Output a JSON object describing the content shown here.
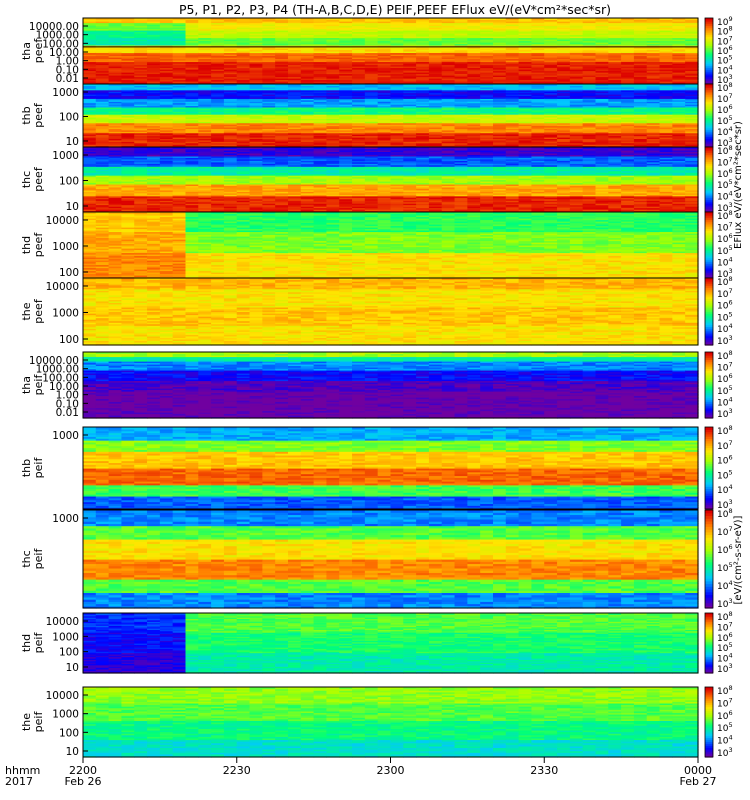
{
  "chart_data": {
    "type": "heatmap",
    "title": "P5, P1, P2, P3, P4 (TH-A,B,C,D,E) PEIF,PEEF EFlux eV/(eV*cm²*sec*sr)",
    "colorbar_label": "[eV/(cm²-s-sr-eV)]",
    "colorbar_labels": {
      "electron": "EFlux eV/(eV*cm²*sec*sr)",
      "ion": "[eV/(cm²-s-sr-eV)]"
    },
    "time_axis": {
      "row_labels": [
        "hhmm",
        "2017"
      ],
      "ticks": [
        {
          "t": 0,
          "label": "2200",
          "date": "Feb 26"
        },
        {
          "t": 30,
          "label": "2230",
          "date": ""
        },
        {
          "t": 60,
          "label": "2300",
          "date": ""
        },
        {
          "t": 90,
          "label": "2330",
          "date": ""
        },
        {
          "t": 120,
          "label": "0000",
          "date": "Feb 27"
        }
      ],
      "range_minutes": [
        0,
        120
      ]
    },
    "panels": [
      {
        "probe": "tha",
        "species": "peef",
        "yticks": [
          "10000.00",
          "1000.00",
          "100.00",
          "10.00",
          "1.00",
          "0.10",
          "0.01"
        ],
        "yrange": [
          -2,
          4.4
        ],
        "crange": [
          3,
          9
        ],
        "has_trace": true,
        "trace_value": 1.6,
        "layers": [
          {
            "from": -2,
            "to": 0.2,
            "base": 8.8
          },
          {
            "from": 0.2,
            "to": 1,
            "base": 8.3
          },
          {
            "from": 1,
            "to": 1.8,
            "base": 7.4
          },
          {
            "from": 1.8,
            "to": 2.5,
            "base": 6.2,
            "early": 5.4
          },
          {
            "from": 2.5,
            "to": 3.3,
            "base": 6.8,
            "early": 5.6
          },
          {
            "from": 3.3,
            "to": 3.9,
            "base": 7.2,
            "early": 6.2
          },
          {
            "from": 3.9,
            "to": 4.4,
            "base": 7.6
          }
        ]
      },
      {
        "probe": "thb",
        "species": "peef",
        "yticks": [
          "1000",
          "100",
          "10"
        ],
        "yrange": [
          0.6,
          3.7
        ],
        "crange": [
          3,
          8
        ],
        "layers": [
          {
            "from": 0.6,
            "to": 1.3,
            "base": 7.8
          },
          {
            "from": 1.3,
            "to": 1.8,
            "base": 7.2
          },
          {
            "from": 1.8,
            "to": 2.2,
            "base": 6.2
          },
          {
            "from": 2.2,
            "to": 2.6,
            "base": 5.2
          },
          {
            "from": 2.6,
            "to": 3.0,
            "base": 4.3
          },
          {
            "from": 3.0,
            "to": 3.4,
            "base": 3.6
          },
          {
            "from": 3.4,
            "to": 3.7,
            "base": 4.5
          }
        ]
      },
      {
        "probe": "thc",
        "species": "peef",
        "yticks": [
          "1000",
          "100",
          "10"
        ],
        "yrange": [
          0.6,
          3.4
        ],
        "crange": [
          3,
          8
        ],
        "layers": [
          {
            "from": 0.6,
            "to": 1.3,
            "base": 7.8
          },
          {
            "from": 1.3,
            "to": 1.8,
            "base": 7.0
          },
          {
            "from": 1.8,
            "to": 2.2,
            "base": 6.0
          },
          {
            "from": 2.2,
            "to": 2.6,
            "base": 5.0
          },
          {
            "from": 2.6,
            "to": 3.0,
            "base": 4.0
          },
          {
            "from": 3.0,
            "to": 3.4,
            "base": 3.3
          }
        ]
      },
      {
        "probe": "thd",
        "species": "peef",
        "yticks": [
          "10000",
          "1000",
          "100"
        ],
        "yrange": [
          1.3,
          4.4
        ],
        "crange": [
          3,
          8
        ],
        "layers": [
          {
            "from": 1.3,
            "to": 2.5,
            "base": 6.6,
            "early": 7.2
          },
          {
            "from": 2.5,
            "to": 3.5,
            "base": 5.8,
            "early": 7.0
          },
          {
            "from": 3.5,
            "to": 4.4,
            "base": 5.4,
            "early": 6.8
          }
        ]
      },
      {
        "probe": "the",
        "species": "peef",
        "yticks": [
          "10000",
          "1000",
          "100"
        ],
        "yrange": [
          1.3,
          4.3
        ],
        "crange": [
          3,
          8
        ],
        "layers": [
          {
            "from": 1.3,
            "to": 2.2,
            "base": 6.6
          },
          {
            "from": 2.2,
            "to": 3.0,
            "base": 6.8
          },
          {
            "from": 3.0,
            "to": 3.8,
            "base": 6.6
          },
          {
            "from": 3.8,
            "to": 4.3,
            "base": 6.9
          }
        ]
      },
      {
        "probe": "tha",
        "species": "peif",
        "yticks": [
          "10000.00",
          "1000.00",
          "100.00",
          "10.00",
          "1.00",
          "0.10",
          "0.01"
        ],
        "yrange": [
          -2,
          4.2
        ],
        "crange": [
          3,
          8
        ],
        "layers": [
          {
            "from": -2,
            "to": 0.5,
            "base": 3.0
          },
          {
            "from": 0.5,
            "to": 1.5,
            "base": 3.2
          },
          {
            "from": 1.5,
            "to": 2.5,
            "base": 3.6
          },
          {
            "from": 2.5,
            "to": 3.3,
            "base": 4.2
          },
          {
            "from": 3.3,
            "to": 3.8,
            "base": 5.0
          },
          {
            "from": 3.8,
            "to": 4.2,
            "base": 6.0
          }
        ]
      },
      {
        "probe": "thb",
        "species": "peif",
        "yticks": [
          "1000"
        ],
        "yrange": [
          2.0,
          4.0
        ],
        "crange": [
          3,
          8
        ],
        "layers": [
          {
            "from": 2.0,
            "to": 2.3,
            "base": 4.0
          },
          {
            "from": 2.3,
            "to": 2.6,
            "base": 5.5
          },
          {
            "from": 2.6,
            "to": 3.0,
            "base": 7.4
          },
          {
            "from": 3.0,
            "to": 3.4,
            "base": 6.8
          },
          {
            "from": 3.4,
            "to": 3.7,
            "base": 5.8
          },
          {
            "from": 3.7,
            "to": 4.0,
            "base": 4.4
          }
        ]
      },
      {
        "probe": "thc",
        "species": "peif",
        "yticks": [
          "1000"
        ],
        "yrange": [
          2.0,
          4.0
        ],
        "crange": [
          3,
          8
        ],
        "layers": [
          {
            "from": 2.0,
            "to": 2.3,
            "base": 4.2
          },
          {
            "from": 2.3,
            "to": 2.6,
            "base": 5.6
          },
          {
            "from": 2.6,
            "to": 3.0,
            "base": 7.2
          },
          {
            "from": 3.0,
            "to": 3.4,
            "base": 6.6
          },
          {
            "from": 3.4,
            "to": 3.7,
            "base": 5.6
          },
          {
            "from": 3.7,
            "to": 4.0,
            "base": 4.2
          }
        ]
      },
      {
        "probe": "thd",
        "species": "peif",
        "yticks": [
          "10000",
          "1000",
          "100",
          "10"
        ],
        "yrange": [
          0.8,
          4.3
        ],
        "crange": [
          3,
          8
        ],
        "layers": [
          {
            "from": 0.8,
            "to": 2.0,
            "base": 5.0,
            "early": 3.4
          },
          {
            "from": 2.0,
            "to": 3.2,
            "base": 5.3,
            "early": 3.6
          },
          {
            "from": 3.2,
            "to": 4.3,
            "base": 5.6,
            "early": 3.8
          }
        ]
      },
      {
        "probe": "the",
        "species": "peif",
        "yticks": [
          "10000",
          "1000",
          "100",
          "10"
        ],
        "yrange": [
          0.6,
          4.3
        ],
        "crange": [
          3,
          8
        ],
        "layers": [
          {
            "from": 0.6,
            "to": 1.5,
            "base": 4.8
          },
          {
            "from": 1.5,
            "to": 2.5,
            "base": 5.2
          },
          {
            "from": 2.5,
            "to": 3.5,
            "base": 5.6
          },
          {
            "from": 3.5,
            "to": 4.3,
            "base": 5.9
          }
        ]
      }
    ]
  }
}
